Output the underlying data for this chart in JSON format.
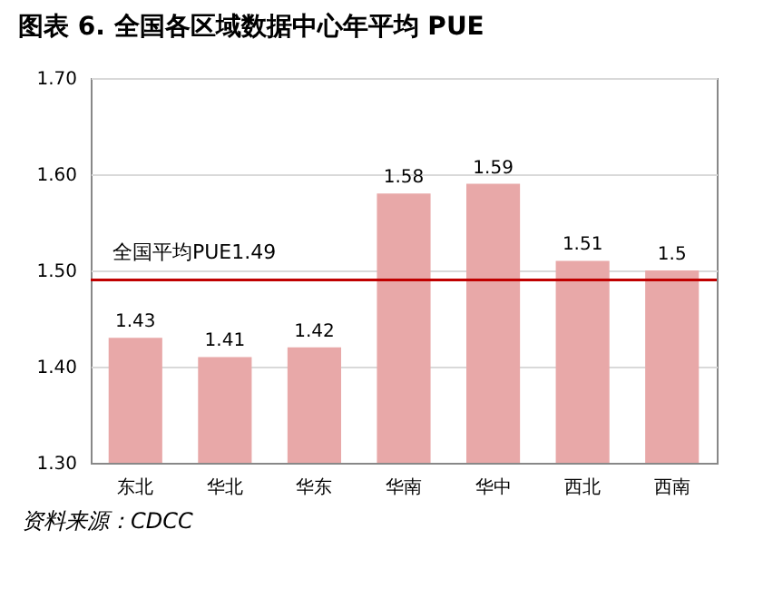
{
  "chart_data": {
    "type": "bar",
    "title": "图表 6. 全国各区域数据中心年平均 PUE",
    "categories": [
      "东北",
      "华北",
      "华东",
      "华南",
      "华中",
      "西北",
      "西南"
    ],
    "values": [
      1.43,
      1.41,
      1.42,
      1.58,
      1.59,
      1.51,
      1.5
    ],
    "color": "#e8a8a8",
    "ylim": [
      1.3,
      1.7
    ],
    "yticks": [
      {
        "value": 1.3,
        "label": "1.30"
      },
      {
        "value": 1.4,
        "label": "1.40"
      },
      {
        "value": 1.5,
        "label": "1.50"
      },
      {
        "value": 1.6,
        "label": "1.60"
      },
      {
        "value": 1.7,
        "label": "1.70"
      }
    ],
    "grid": "y",
    "data_labels": true,
    "ref_lines": [
      {
        "axis": "y",
        "value": 1.49,
        "label": "全国平均PUE1.49",
        "color": "#c00000"
      }
    ],
    "annotations": [
      "资料来源：CDCC"
    ]
  }
}
